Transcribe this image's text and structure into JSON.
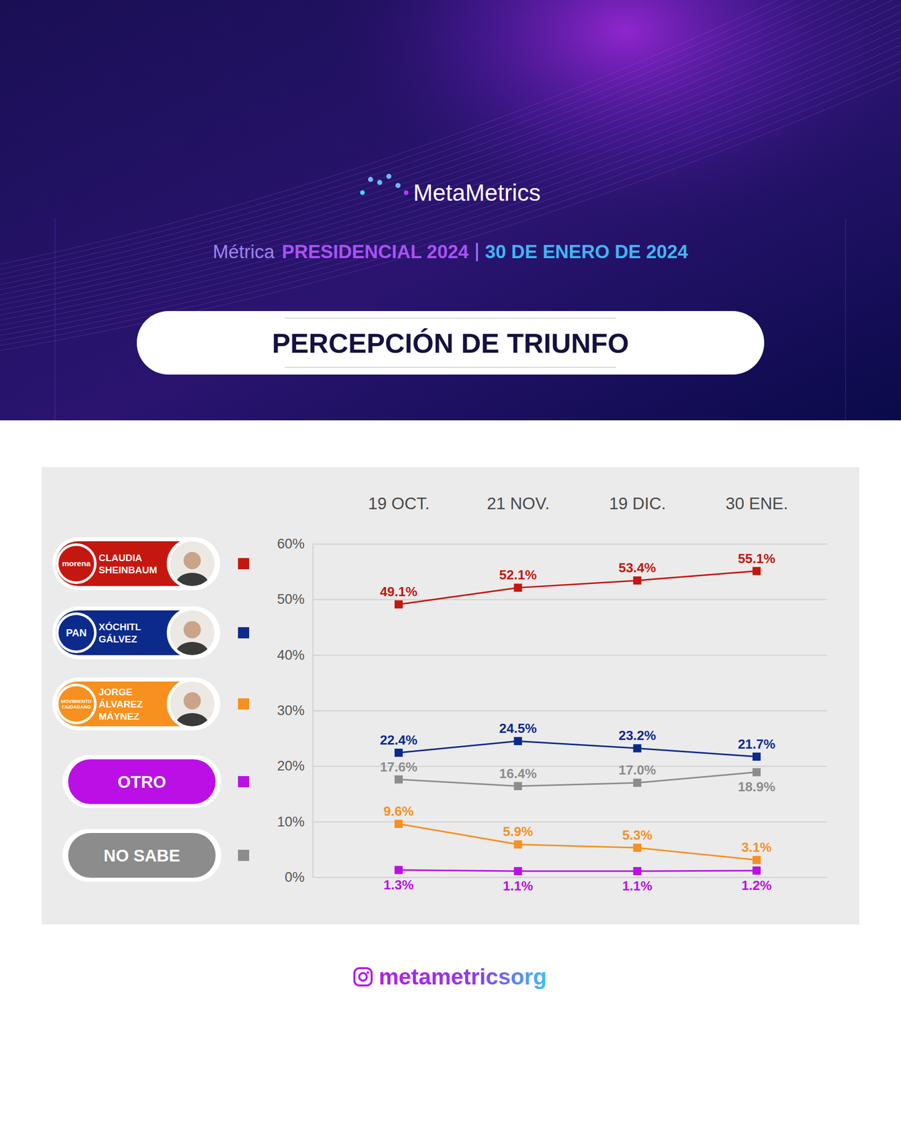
{
  "header": {
    "brand": "MetaMetrics",
    "kicker": "Métrica",
    "edition": "PRESIDENCIAL 2024",
    "date": "30 DE ENERO DE 2024"
  },
  "footer": {
    "handle": "metametricsorg"
  },
  "chart_data": {
    "type": "line",
    "title": "PERCEPCIÓN DE TRIUNFO",
    "categories": [
      "19 OCT.",
      "21 NOV.",
      "19 DIC.",
      "30 ENE."
    ],
    "series": [
      {
        "name": "CLAUDIA SHEINBAUM",
        "party": "morena",
        "color": "#c4170f",
        "marker": "square",
        "values": [
          49.1,
          52.1,
          53.4,
          55.1
        ],
        "value_labels": [
          "49.1%",
          "52.1%",
          "53.4%",
          "55.1%"
        ]
      },
      {
        "name": "XÓCHITL GÁLVEZ",
        "party": "PAN",
        "color": "#0b2a8c",
        "marker": "square",
        "values": [
          22.4,
          24.5,
          23.2,
          21.7
        ],
        "value_labels": [
          "22.4%",
          "24.5%",
          "23.2%",
          "21.7%"
        ]
      },
      {
        "name": "JORGE ÁLVAREZ MÁYNEZ",
        "party": "MOVIMIENTO CIUDADANO",
        "color": "#f7901e",
        "marker": "square",
        "values": [
          9.6,
          5.9,
          5.3,
          3.1
        ],
        "value_labels": [
          "9.6%",
          "5.9%",
          "5.3%",
          "3.1%"
        ]
      },
      {
        "name": "OTRO",
        "color": "#bb0fe6",
        "marker": "square",
        "values": [
          1.3,
          1.1,
          1.1,
          1.2
        ],
        "value_labels": [
          "1.3%",
          "1.1%",
          "1.1%",
          "1.2%"
        ]
      },
      {
        "name": "NO SABE",
        "color": "#8c8c8c",
        "marker": "square",
        "values": [
          17.6,
          16.4,
          17.0,
          18.9
        ],
        "value_labels": [
          "17.6%",
          "16.4%",
          "17.0%",
          "18.9%"
        ]
      }
    ],
    "ylim": [
      0,
      60
    ],
    "yticks": [
      {
        "value": 0,
        "label": "0%"
      },
      {
        "value": 10,
        "label": "10%"
      },
      {
        "value": 20,
        "label": "20%"
      },
      {
        "value": 30,
        "label": "30%"
      },
      {
        "value": 40,
        "label": "40%"
      },
      {
        "value": 50,
        "label": "50%"
      },
      {
        "value": 60,
        "label": "60%"
      }
    ],
    "grid": true,
    "legend": "left",
    "data_labels": true
  }
}
